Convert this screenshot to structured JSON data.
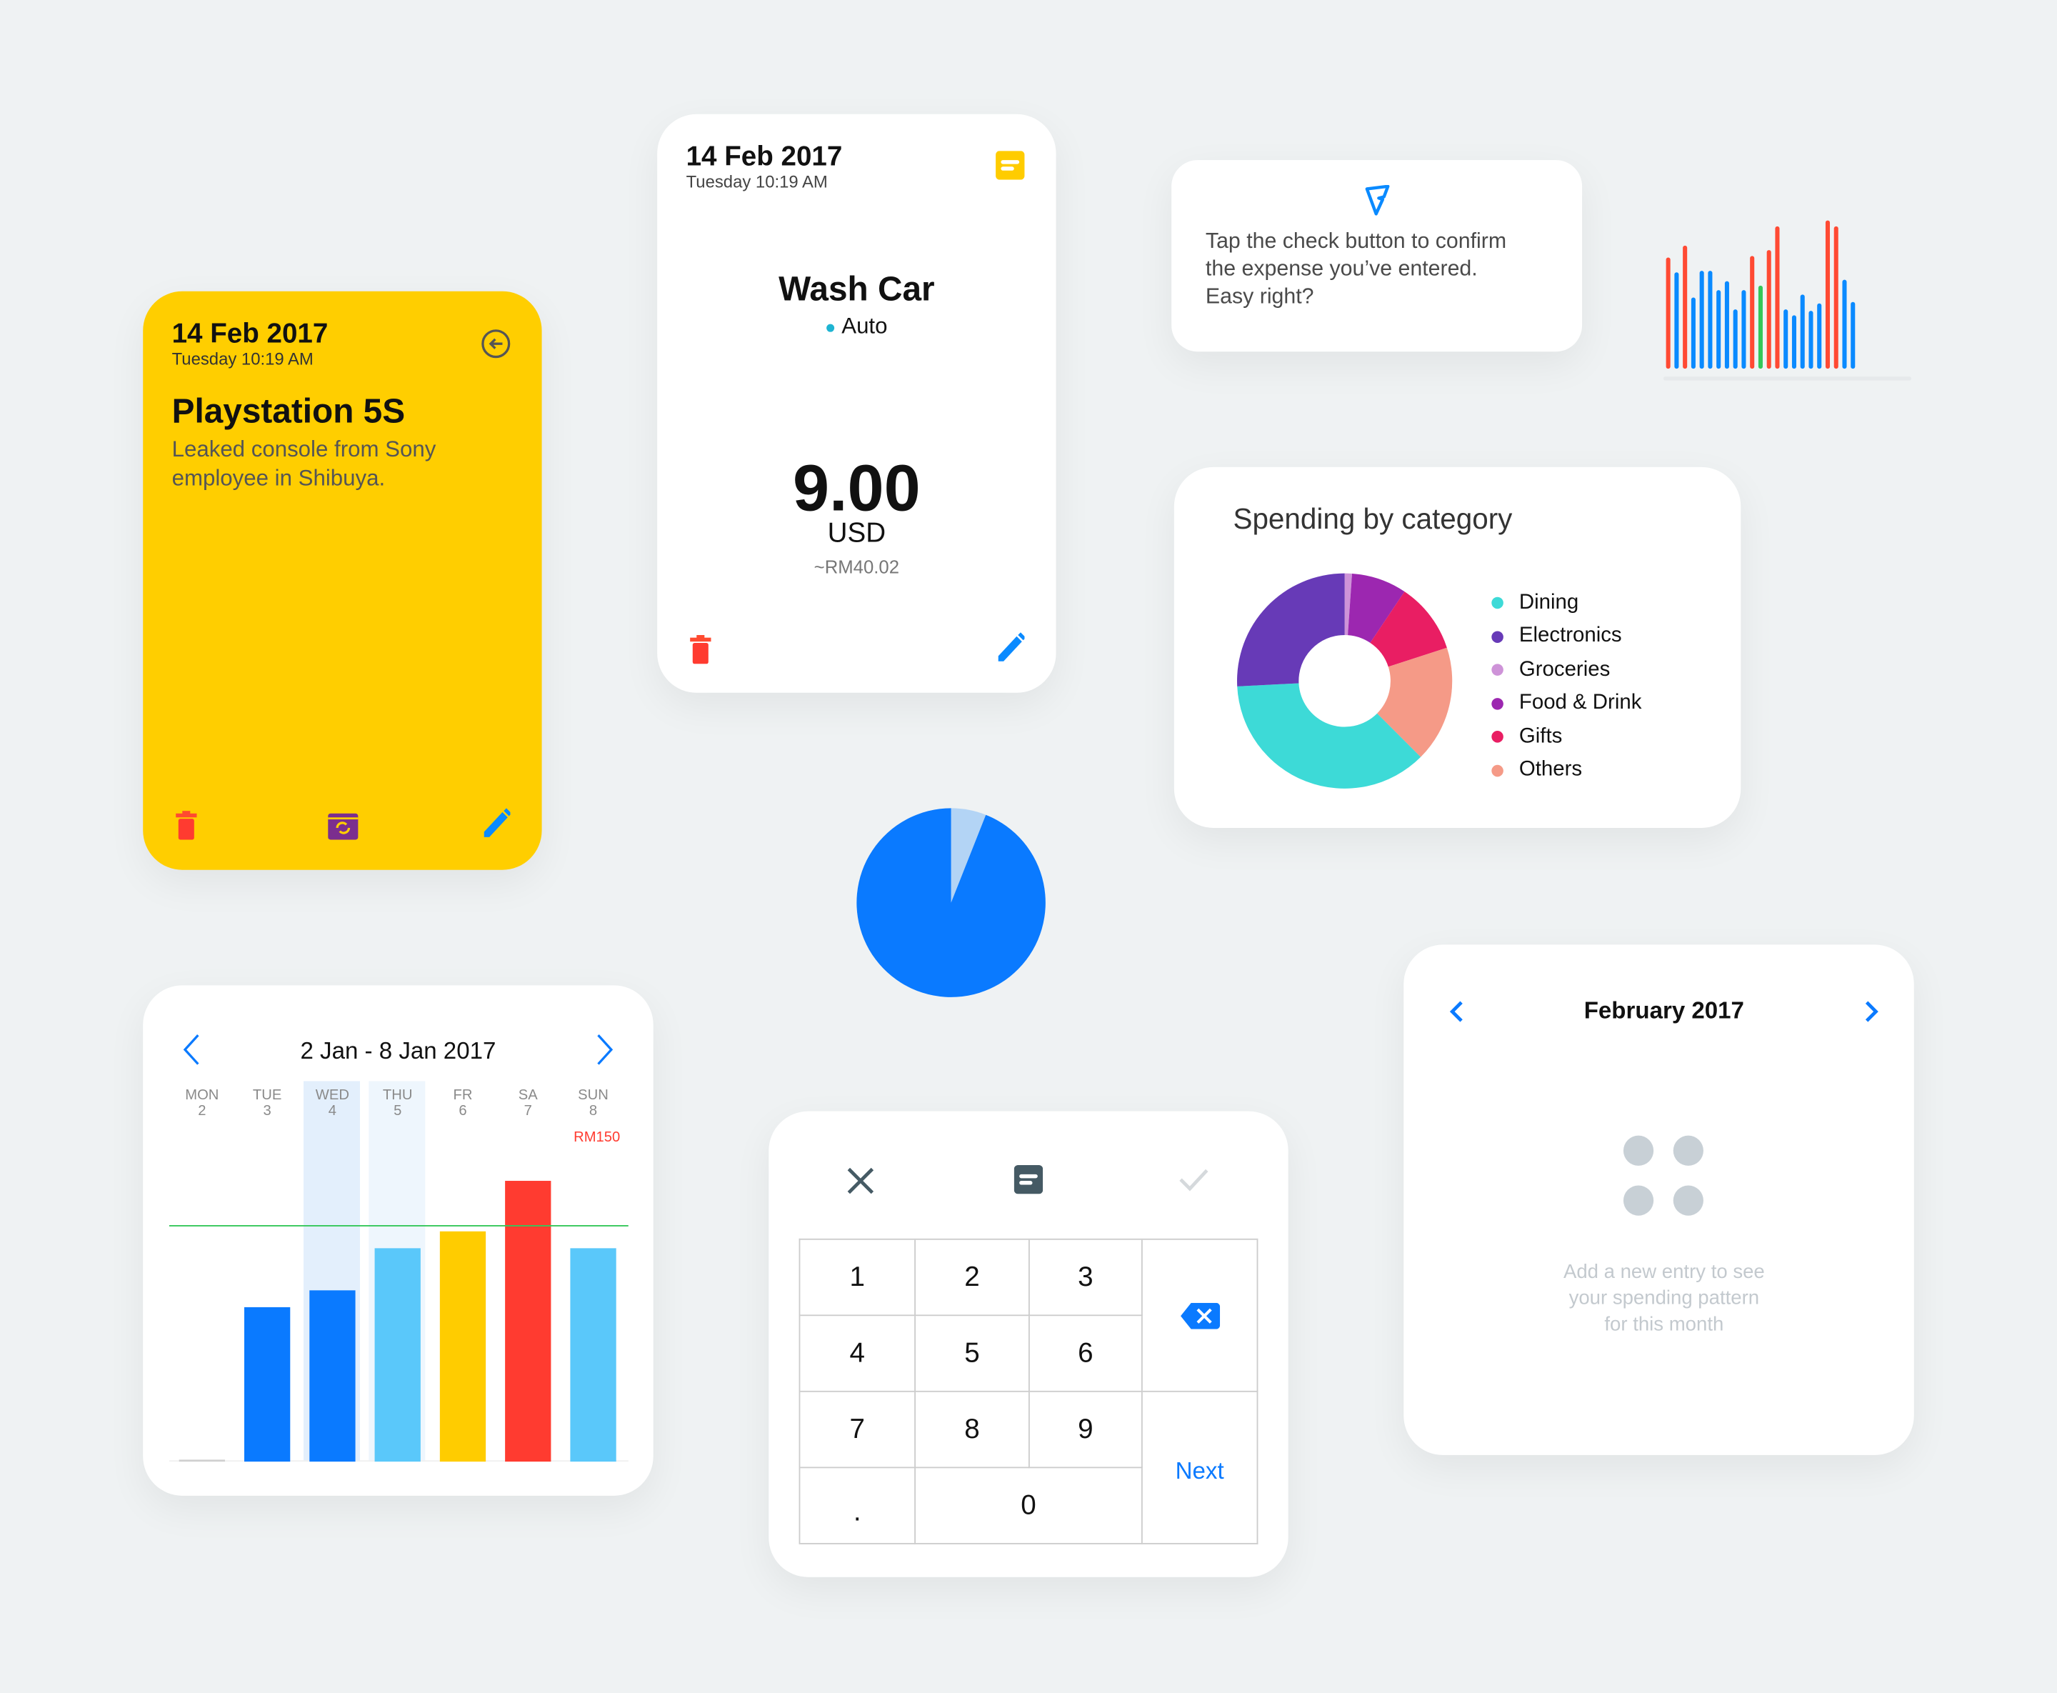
{
  "colors": {
    "background": "#EFF2F3",
    "yellow": "#FFCE00",
    "blue": "#0A7AFF",
    "light_blue": "#5AC8FA",
    "red": "#FF3B30",
    "green": "#34C759"
  },
  "note_card": {
    "date": "14 Feb 2017",
    "time": "Tuesday 10:19 AM",
    "title": "Playstation 5S",
    "description": "Leaked console from Sony employee in Shibuya.",
    "icons": [
      "back-arrow-icon",
      "trash-icon",
      "recurring-calendar-icon",
      "pencil-icon"
    ]
  },
  "expense_card": {
    "date": "14 Feb 2017",
    "time": "Tuesday 10:19 AM",
    "title": "Wash Car",
    "category": "Auto",
    "category_color": "#1EB4D2",
    "amount": "9.00",
    "currency": "USD",
    "converted": "~RM40.02",
    "icons": [
      "note-icon",
      "trash-icon",
      "pencil-icon"
    ]
  },
  "tip_card": {
    "icon": "lightning-logo-icon",
    "text_lines": [
      "Tap the check button to confirm",
      "the expense you’ve entered.",
      "Easy right?"
    ]
  },
  "chart_data": [
    {
      "type": "bar",
      "title": "",
      "values": [
        75,
        65,
        83,
        48,
        66,
        66,
        53,
        59,
        40,
        53,
        76,
        56,
        80,
        96,
        40,
        36,
        50,
        39,
        44,
        100,
        96,
        60,
        45
      ],
      "bar_colors": [
        "red",
        "blue",
        "red",
        "blue",
        "blue",
        "blue",
        "blue",
        "blue",
        "blue",
        "blue",
        "red",
        "green",
        "red",
        "red",
        "blue",
        "blue",
        "blue",
        "blue",
        "blue",
        "red",
        "red",
        "blue",
        "blue"
      ],
      "ylim": [
        0,
        100
      ]
    },
    {
      "type": "pie",
      "title": "Spending by category",
      "donut": true,
      "legend_position": "right",
      "categories": [
        "Dining",
        "Electronics",
        "Groceries",
        "Food & Drink",
        "Gifts",
        "Others"
      ],
      "values": [
        36.7,
        25.8,
        1.1,
        8.3,
        10.6,
        17.5
      ],
      "colors": [
        "#3DDAD7",
        "#673AB7",
        "#CE93D8",
        "#9C27B0",
        "#E91E63",
        "#F59A87"
      ],
      "draw_order": [
        "Groceries",
        "Food & Drink",
        "Gifts",
        "Others",
        "Dining",
        "Electronics"
      ]
    },
    {
      "type": "pie",
      "values": [
        6,
        94
      ],
      "colors": [
        "#B3D4F5",
        "#0A7AFF"
      ]
    },
    {
      "type": "bar",
      "title": "2 Jan - 8 Jan 2017",
      "categories": [
        "MON",
        "TUE",
        "WED",
        "THU",
        "FR",
        "SA",
        "SUN"
      ],
      "day_numbers": [
        "2",
        "3",
        "4",
        "5",
        "6",
        "7",
        "8"
      ],
      "values": [
        0,
        55,
        61,
        76,
        82,
        100,
        76
      ],
      "bar_colors": [
        "#D0D0D0",
        "#0A7AFF",
        "#0A7AFF",
        "#5AC8FA",
        "#FFCC00",
        "#FF3B30",
        "#5AC8FA"
      ],
      "highlighted": [
        "WED",
        "THU"
      ],
      "budget_line": 84,
      "annotation": {
        "category": "SUN",
        "text": "RM150",
        "color": "#FF3B30"
      },
      "ylim": [
        0,
        100
      ]
    }
  ],
  "keypad": {
    "keys": [
      "1",
      "2",
      "3",
      "4",
      "5",
      "6",
      "7",
      "8",
      "9",
      ".",
      "0"
    ],
    "next_label": "Next",
    "icons": [
      "close-icon",
      "note-icon",
      "check-icon",
      "backspace-icon"
    ]
  },
  "calendar_card": {
    "month": "February 2017",
    "empty_text_lines": [
      "Add a new entry to see",
      "your spending pattern",
      "for this month"
    ]
  }
}
